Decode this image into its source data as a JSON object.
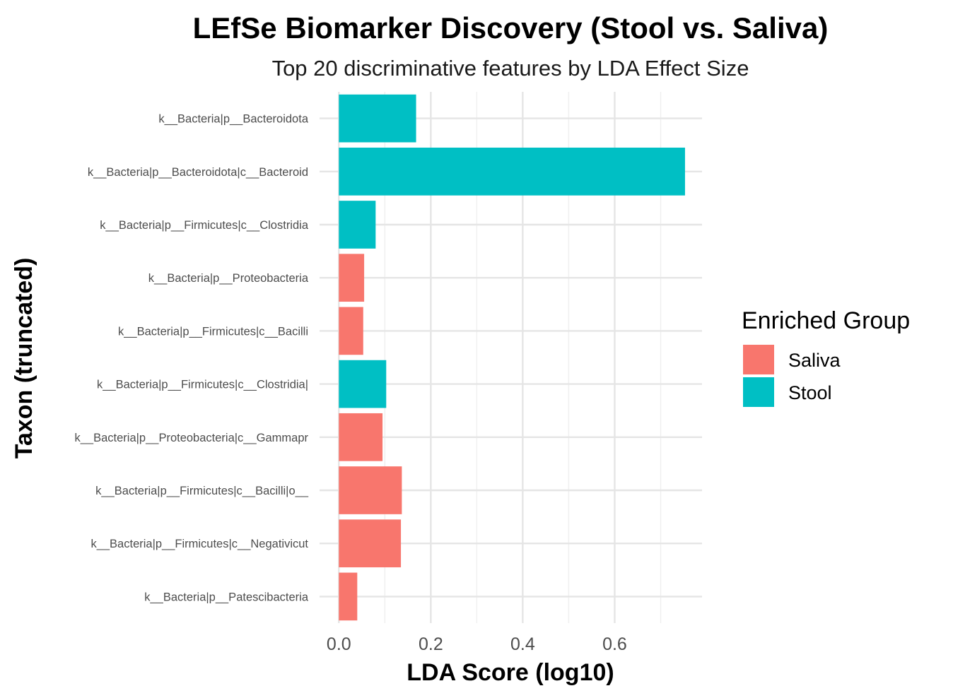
{
  "chart_data": {
    "type": "bar",
    "orientation": "horizontal",
    "title": "LEfSe Biomarker Discovery (Stool vs. Saliva)",
    "subtitle": "Top 20 discriminative features by LDA Effect Size",
    "xlabel": "LDA Score (log10)",
    "ylabel": "Taxon (truncated)",
    "xlim": [
      -0.042,
      0.79
    ],
    "x_ticks": [
      0.0,
      0.2,
      0.4,
      0.6
    ],
    "x_tick_labels": [
      "0.0",
      "0.2",
      "0.4",
      "0.6"
    ],
    "grid": true,
    "legend": {
      "title": "Enriched Group",
      "position": "right",
      "entries": [
        {
          "name": "Saliva",
          "color": "#F8766D"
        },
        {
          "name": "Stool",
          "color": "#00BFC4"
        }
      ]
    },
    "categories": [
      "k__Bacteria|p__Bacteroidota",
      "k__Bacteria|p__Bacteroidota|c__Bacteroid",
      "k__Bacteria|p__Firmicutes|c__Clostridia",
      "k__Bacteria|p__Proteobacteria",
      "k__Bacteria|p__Firmicutes|c__Bacilli",
      "k__Bacteria|p__Firmicutes|c__Clostridia|",
      "k__Bacteria|p__Proteobacteria|c__Gammapr",
      "k__Bacteria|p__Firmicutes|c__Bacilli|o__",
      "k__Bacteria|p__Firmicutes|c__Negativicut",
      "k__Bacteria|p__Patescibacteria"
    ],
    "values": [
      0.168,
      0.753,
      0.08,
      0.055,
      0.053,
      0.103,
      0.095,
      0.137,
      0.135,
      0.04
    ],
    "groups": [
      "Stool",
      "Stool",
      "Stool",
      "Saliva",
      "Saliva",
      "Stool",
      "Saliva",
      "Saliva",
      "Saliva",
      "Saliva"
    ]
  }
}
